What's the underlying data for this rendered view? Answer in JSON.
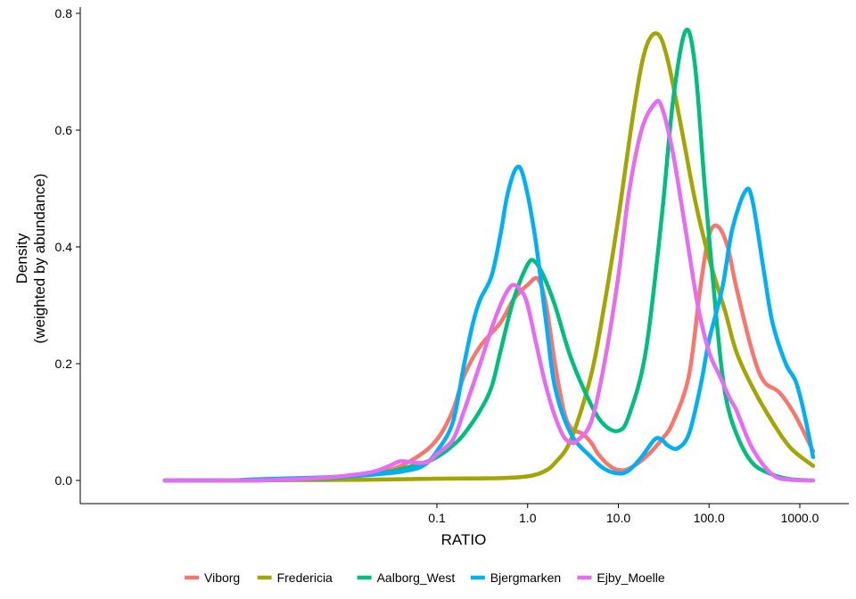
{
  "chart_data": {
    "type": "line",
    "x_scale": "log10",
    "xlabel": "RATIO",
    "ylabel_line1": "Density",
    "ylabel_line2": "(weighted by abundance)",
    "xlim": [
      0.0001,
      2000
    ],
    "ylim": [
      -0.04,
      0.81
    ],
    "x_ticks": [
      {
        "value": 0.1,
        "label": "0.1"
      },
      {
        "value": 1,
        "label": "1.0"
      },
      {
        "value": 10,
        "label": "10.0"
      },
      {
        "value": 100,
        "label": "100.0"
      },
      {
        "value": 1000,
        "label": "1000.0"
      }
    ],
    "y_ticks": [
      {
        "value": 0.0,
        "label": "0.0"
      },
      {
        "value": 0.2,
        "label": "0.2"
      },
      {
        "value": 0.4,
        "label": "0.4"
      },
      {
        "value": 0.6,
        "label": "0.6"
      },
      {
        "value": 0.8,
        "label": "0.8"
      }
    ],
    "grid": false,
    "legend_position": "bottom",
    "series": [
      {
        "name": "Viborg",
        "color": "#F8766D",
        "points": [
          [
            0.0001,
            0.0
          ],
          [
            0.001,
            0.0
          ],
          [
            0.003,
            0.002
          ],
          [
            0.01,
            0.008
          ],
          [
            0.03,
            0.018
          ],
          [
            0.06,
            0.04
          ],
          [
            0.1,
            0.07
          ],
          [
            0.15,
            0.12
          ],
          [
            0.2,
            0.18
          ],
          [
            0.3,
            0.23
          ],
          [
            0.5,
            0.27
          ],
          [
            0.7,
            0.31
          ],
          [
            1.0,
            0.335
          ],
          [
            1.3,
            0.345
          ],
          [
            1.6,
            0.3
          ],
          [
            2.0,
            0.2
          ],
          [
            2.5,
            0.12
          ],
          [
            3.0,
            0.09
          ],
          [
            4.0,
            0.08
          ],
          [
            5.0,
            0.065
          ],
          [
            6.0,
            0.045
          ],
          [
            8.0,
            0.025
          ],
          [
            10.0,
            0.018
          ],
          [
            13.0,
            0.02
          ],
          [
            20.0,
            0.04
          ],
          [
            30.0,
            0.07
          ],
          [
            40.0,
            0.1
          ],
          [
            60.0,
            0.18
          ],
          [
            80.0,
            0.33
          ],
          [
            100.0,
            0.42
          ],
          [
            125.0,
            0.435
          ],
          [
            160.0,
            0.4
          ],
          [
            200.0,
            0.33
          ],
          [
            300.0,
            0.22
          ],
          [
            400.0,
            0.17
          ],
          [
            600.0,
            0.15
          ],
          [
            900.0,
            0.11
          ],
          [
            1400.0,
            0.05
          ]
        ]
      },
      {
        "name": "Fredericia",
        "color": "#A3A500",
        "points": [
          [
            0.0001,
            0.0
          ],
          [
            0.01,
            0.001
          ],
          [
            0.1,
            0.003
          ],
          [
            0.5,
            0.004
          ],
          [
            1.0,
            0.007
          ],
          [
            1.5,
            0.015
          ],
          [
            2.0,
            0.03
          ],
          [
            3.0,
            0.07
          ],
          [
            5.0,
            0.18
          ],
          [
            7.0,
            0.3
          ],
          [
            10.0,
            0.45
          ],
          [
            15.0,
            0.64
          ],
          [
            20.0,
            0.74
          ],
          [
            27.0,
            0.765
          ],
          [
            35.0,
            0.72
          ],
          [
            50.0,
            0.6
          ],
          [
            70.0,
            0.48
          ],
          [
            100.0,
            0.38
          ],
          [
            150.0,
            0.29
          ],
          [
            200.0,
            0.22
          ],
          [
            300.0,
            0.16
          ],
          [
            500.0,
            0.1
          ],
          [
            800.0,
            0.055
          ],
          [
            1400.0,
            0.025
          ]
        ]
      },
      {
        "name": "Aalborg_West",
        "color": "#00BF7D",
        "points": [
          [
            0.0001,
            0.0
          ],
          [
            0.001,
            0.0
          ],
          [
            0.005,
            0.003
          ],
          [
            0.01,
            0.006
          ],
          [
            0.03,
            0.015
          ],
          [
            0.07,
            0.03
          ],
          [
            0.1,
            0.04
          ],
          [
            0.15,
            0.06
          ],
          [
            0.2,
            0.08
          ],
          [
            0.3,
            0.12
          ],
          [
            0.4,
            0.16
          ],
          [
            0.5,
            0.22
          ],
          [
            0.7,
            0.31
          ],
          [
            1.0,
            0.37
          ],
          [
            1.2,
            0.375
          ],
          [
            1.5,
            0.35
          ],
          [
            2.0,
            0.3
          ],
          [
            3.0,
            0.21
          ],
          [
            5.0,
            0.13
          ],
          [
            7.0,
            0.095
          ],
          [
            10.0,
            0.085
          ],
          [
            13.0,
            0.11
          ],
          [
            20.0,
            0.22
          ],
          [
            30.0,
            0.45
          ],
          [
            40.0,
            0.65
          ],
          [
            55.0,
            0.77
          ],
          [
            70.0,
            0.71
          ],
          [
            90.0,
            0.5
          ],
          [
            120.0,
            0.28
          ],
          [
            150.0,
            0.15
          ],
          [
            200.0,
            0.08
          ],
          [
            300.0,
            0.03
          ],
          [
            500.0,
            0.01
          ],
          [
            800.0,
            0.002
          ],
          [
            1400.0,
            0.0
          ]
        ]
      },
      {
        "name": "Bjergmarken",
        "color": "#00B0F6",
        "points": [
          [
            0.0001,
            0.0
          ],
          [
            0.0005,
            0.0
          ],
          [
            0.001,
            0.002
          ],
          [
            0.005,
            0.005
          ],
          [
            0.01,
            0.007
          ],
          [
            0.02,
            0.01
          ],
          [
            0.04,
            0.015
          ],
          [
            0.07,
            0.025
          ],
          [
            0.1,
            0.05
          ],
          [
            0.15,
            0.1
          ],
          [
            0.2,
            0.2
          ],
          [
            0.25,
            0.27
          ],
          [
            0.3,
            0.31
          ],
          [
            0.4,
            0.35
          ],
          [
            0.5,
            0.42
          ],
          [
            0.6,
            0.49
          ],
          [
            0.75,
            0.535
          ],
          [
            0.9,
            0.52
          ],
          [
            1.2,
            0.42
          ],
          [
            1.6,
            0.27
          ],
          [
            2.0,
            0.16
          ],
          [
            3.0,
            0.08
          ],
          [
            5.0,
            0.04
          ],
          [
            7.0,
            0.02
          ],
          [
            10.0,
            0.012
          ],
          [
            13.0,
            0.017
          ],
          [
            18.0,
            0.04
          ],
          [
            25.0,
            0.07
          ],
          [
            30.0,
            0.07
          ],
          [
            35.0,
            0.06
          ],
          [
            45.0,
            0.055
          ],
          [
            60.0,
            0.08
          ],
          [
            80.0,
            0.16
          ],
          [
            100.0,
            0.24
          ],
          [
            140.0,
            0.33
          ],
          [
            180.0,
            0.43
          ],
          [
            250.0,
            0.495
          ],
          [
            300.0,
            0.48
          ],
          [
            400.0,
            0.36
          ],
          [
            500.0,
            0.27
          ],
          [
            700.0,
            0.2
          ],
          [
            900.0,
            0.17
          ],
          [
            1100.0,
            0.12
          ],
          [
            1400.0,
            0.04
          ]
        ]
      },
      {
        "name": "Ejby_Moelle",
        "color": "#E76BF3",
        "points": [
          [
            0.0001,
            0.0
          ],
          [
            0.001,
            0.0
          ],
          [
            0.005,
            0.004
          ],
          [
            0.01,
            0.008
          ],
          [
            0.02,
            0.015
          ],
          [
            0.03,
            0.025
          ],
          [
            0.04,
            0.033
          ],
          [
            0.06,
            0.03
          ],
          [
            0.08,
            0.032
          ],
          [
            0.1,
            0.045
          ],
          [
            0.15,
            0.07
          ],
          [
            0.2,
            0.12
          ],
          [
            0.3,
            0.2
          ],
          [
            0.4,
            0.26
          ],
          [
            0.5,
            0.3
          ],
          [
            0.6,
            0.325
          ],
          [
            0.7,
            0.335
          ],
          [
            0.85,
            0.325
          ],
          [
            1.0,
            0.3
          ],
          [
            1.3,
            0.22
          ],
          [
            1.6,
            0.16
          ],
          [
            2.0,
            0.11
          ],
          [
            2.5,
            0.075
          ],
          [
            3.0,
            0.065
          ],
          [
            3.5,
            0.068
          ],
          [
            5.0,
            0.1
          ],
          [
            7.0,
            0.2
          ],
          [
            10.0,
            0.35
          ],
          [
            13.0,
            0.49
          ],
          [
            18.0,
            0.6
          ],
          [
            25.0,
            0.645
          ],
          [
            30.0,
            0.64
          ],
          [
            40.0,
            0.56
          ],
          [
            55.0,
            0.43
          ],
          [
            75.0,
            0.3
          ],
          [
            100.0,
            0.22
          ],
          [
            130.0,
            0.18
          ],
          [
            170.0,
            0.14
          ],
          [
            200.0,
            0.12
          ],
          [
            300.0,
            0.055
          ],
          [
            500.0,
            0.01
          ],
          [
            800.0,
            0.001
          ],
          [
            1400.0,
            0.0
          ]
        ]
      }
    ]
  }
}
